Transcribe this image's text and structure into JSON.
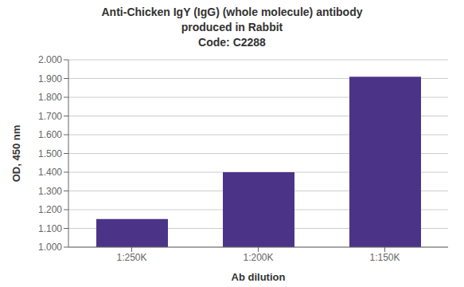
{
  "chart_data": {
    "type": "bar",
    "title": "Anti-Chicken IgY (IgG) (whole molecule) antibody\nproduced in Rabbit\nCode: C2288",
    "categories": [
      "1:250K",
      "1:200K",
      "1:150K"
    ],
    "values": [
      1.15,
      1.4,
      1.91
    ],
    "color": "#4B3488",
    "xlabel": "Ab dilution",
    "ylabel": "OD, 450 nm",
    "ylim": [
      1.0,
      2.0
    ],
    "yticks": [
      {
        "value": 1.0,
        "label": "1.000"
      },
      {
        "value": 1.1,
        "label": "1.100"
      },
      {
        "value": 1.2,
        "label": "1.200"
      },
      {
        "value": 1.3,
        "label": "1.300"
      },
      {
        "value": 1.4,
        "label": "1.400"
      },
      {
        "value": 1.5,
        "label": "1.500"
      },
      {
        "value": 1.6,
        "label": "1.600"
      },
      {
        "value": 1.7,
        "label": "1.700"
      },
      {
        "value": 1.8,
        "label": "1.800"
      },
      {
        "value": 1.9,
        "label": "1.900"
      },
      {
        "value": 2.0,
        "label": "2.000"
      }
    ],
    "grid": true
  }
}
